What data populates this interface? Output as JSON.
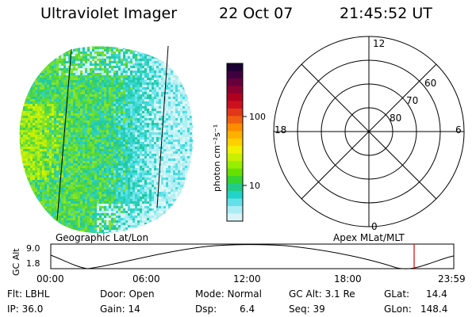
{
  "header": {
    "instrument": "Ultraviolet Imager",
    "date": "22 Oct 07",
    "time": "21:45:52 UT"
  },
  "colorbar": {
    "unit_label": "photon cm⁻²s⁻¹",
    "tick_labels": [
      "100",
      "10"
    ],
    "colors": [
      "#1a0033",
      "#400040",
      "#66003a",
      "#8c0030",
      "#b00020",
      "#cc1020",
      "#e03818",
      "#f06010",
      "#ff8c00",
      "#ffb000",
      "#ffd000",
      "#f0f000",
      "#c8f000",
      "#98ee00",
      "#66e000",
      "#33d433",
      "#22cc88",
      "#22d4c8",
      "#66e0e8",
      "#aaeef4",
      "#d8f4f8"
    ]
  },
  "polar_plot": {
    "mlt_labels": {
      "top": "12",
      "left": "18",
      "right": "6",
      "bottom": "0"
    },
    "lat_labels": [
      "60",
      "70",
      "80"
    ]
  },
  "timeline": {
    "y_axis_label": "GC Alt",
    "y_ticks": [
      "9.0",
      "1.8"
    ],
    "left_caption": "Geographic Lat/Lon",
    "right_caption": "Apex MLat/MLT",
    "x_ticks": [
      "00:00",
      "06:00",
      "12:00",
      "18:00",
      "23:59"
    ],
    "marker_color": "#dd0000"
  },
  "info": {
    "flt": "Flt: LBHL",
    "ip": "IP: 36.0",
    "door": "Door: Open",
    "gain": "Gain: 14",
    "mode": "Mode: Normal",
    "dsp": "Dsp:",
    "dsp_value": "6.4",
    "gc_alt": "GC Alt: 3.1 Re",
    "seq": "Seq: 39",
    "glat": "GLat:",
    "glat_value": "14.4",
    "glon": "GLon:",
    "glon_value": "148.4"
  }
}
